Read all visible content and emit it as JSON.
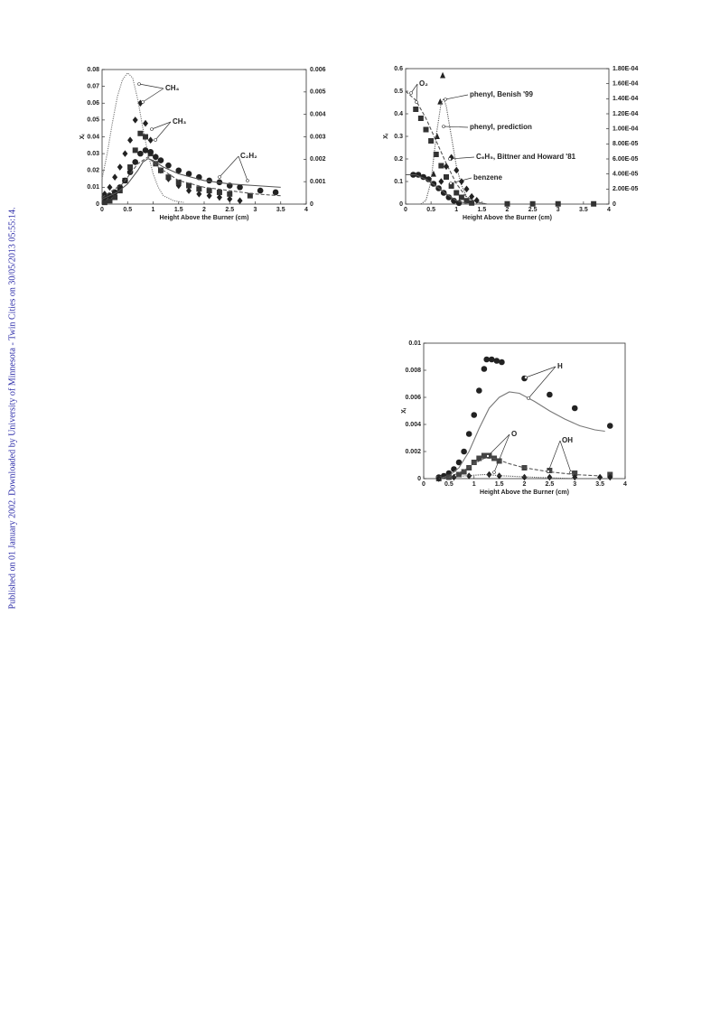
{
  "side_note": "Published on 01 January 2002. Downloaded by University of Minnesota - Twin Cities on 30/05/2013 05:55:14.",
  "chart_data": [
    {
      "type": "scatter",
      "xlabel": "Height Above the Burner (cm)",
      "ylabel": "Xᵢ",
      "xlim": [
        0,
        4
      ],
      "xticks": [
        0,
        0.5,
        1,
        1.5,
        2,
        2.5,
        3,
        3.5,
        4
      ],
      "ylim": [
        0,
        0.08
      ],
      "yticks": [
        0,
        0.01,
        0.02,
        0.03,
        0.04,
        0.05,
        0.06,
        0.07,
        0.08
      ],
      "y2lim": [
        0,
        0.006
      ],
      "y2ticks": [
        0,
        0.001,
        0.002,
        0.003,
        0.004,
        0.005,
        0.006
      ],
      "annotations": [
        "CH₄",
        "CH₃",
        "C₂H₂"
      ],
      "series": [
        {
          "marker": "diamond",
          "color": "#222",
          "x": [
            0.05,
            0.15,
            0.25,
            0.35,
            0.45,
            0.55,
            0.65,
            0.75,
            0.85,
            0.95,
            1.05,
            1.15,
            1.3,
            1.5,
            1.7,
            1.9,
            2.1,
            2.3,
            2.5,
            2.7
          ],
          "values": [
            0.006,
            0.01,
            0.016,
            0.022,
            0.03,
            0.038,
            0.05,
            0.06,
            0.048,
            0.038,
            0.028,
            0.02,
            0.015,
            0.011,
            0.008,
            0.006,
            0.005,
            0.004,
            0.003,
            0.002
          ]
        },
        {
          "line": "dotted",
          "color": "#777",
          "x": [
            0,
            0.1,
            0.2,
            0.3,
            0.4,
            0.5,
            0.6,
            0.7,
            0.8,
            0.9,
            1.0,
            1.1,
            1.2,
            1.4,
            1.6
          ],
          "values": [
            0.015,
            0.03,
            0.048,
            0.064,
            0.074,
            0.078,
            0.075,
            0.062,
            0.045,
            0.03,
            0.018,
            0.01,
            0.005,
            0.002,
            0.001
          ]
        },
        {
          "marker": "square",
          "color": "#333",
          "x": [
            0.05,
            0.15,
            0.25,
            0.35,
            0.45,
            0.55,
            0.65,
            0.75,
            0.85,
            0.95,
            1.05,
            1.15,
            1.3,
            1.5,
            1.7,
            1.9,
            2.1,
            2.3,
            2.5,
            2.9
          ],
          "values": [
            0.001,
            0.002,
            0.004,
            0.008,
            0.014,
            0.022,
            0.032,
            0.042,
            0.04,
            0.03,
            0.024,
            0.02,
            0.016,
            0.013,
            0.011,
            0.009,
            0.008,
            0.007,
            0.006,
            0.005
          ]
        },
        {
          "marker": "circle",
          "color": "#222",
          "x": [
            0.05,
            0.15,
            0.25,
            0.35,
            0.45,
            0.55,
            0.65,
            0.75,
            0.85,
            0.95,
            1.05,
            1.15,
            1.3,
            1.5,
            1.7,
            1.9,
            2.1,
            2.3,
            2.5,
            2.7,
            3.1,
            3.4
          ],
          "values": [
            0.004,
            0.005,
            0.007,
            0.01,
            0.014,
            0.019,
            0.025,
            0.03,
            0.032,
            0.031,
            0.028,
            0.026,
            0.023,
            0.02,
            0.018,
            0.016,
            0.014,
            0.013,
            0.011,
            0.01,
            0.008,
            0.007
          ]
        },
        {
          "line": "solid",
          "color": "#555",
          "x": [
            0,
            0.3,
            0.5,
            0.7,
            0.8,
            0.9,
            1.0,
            1.2,
            1.5,
            2.0,
            2.5,
            3.0,
            3.5
          ],
          "values": [
            0.003,
            0.007,
            0.012,
            0.02,
            0.025,
            0.027,
            0.026,
            0.022,
            0.018,
            0.014,
            0.012,
            0.011,
            0.01
          ]
        },
        {
          "line": "dashed",
          "color": "#555",
          "x": [
            0,
            0.4,
            0.7,
            0.9,
            1.1,
            1.5,
            2,
            2.5,
            3,
            3.5
          ],
          "values": [
            0.004,
            0.012,
            0.024,
            0.028,
            0.022,
            0.014,
            0.01,
            0.008,
            0.006,
            0.005
          ]
        }
      ]
    },
    {
      "type": "scatter",
      "xlabel": "Height Above the Burner (cm)",
      "ylabel": "Xᵢ",
      "xlim": [
        0,
        4
      ],
      "xticks": [
        0,
        0.5,
        1,
        1.5,
        2,
        2.5,
        3,
        3.5,
        4
      ],
      "ylim": [
        0,
        0.6
      ],
      "yticks": [
        0,
        0.1,
        0.2,
        0.3,
        0.4,
        0.5,
        0.6
      ],
      "y2lim": [
        0,
        0.00018
      ],
      "y2ticks": [
        0,
        {
          "value": 2e-05,
          "label": "2.00E-05"
        },
        {
          "value": 4e-05,
          "label": "4.00E-05"
        },
        {
          "value": 6e-05,
          "label": "6.00E-05"
        },
        {
          "value": 8e-05,
          "label": "8.00E-05"
        },
        {
          "value": 0.0001,
          "label": "1.00E-04"
        },
        {
          "value": 0.00012,
          "label": "1.20E-04"
        },
        {
          "value": 0.00014,
          "label": "1.40E-04"
        },
        {
          "value": 0.00016,
          "label": "1.60E-04"
        },
        {
          "value": 0.00018,
          "label": "1.80E-04"
        }
      ],
      "annotations": [
        "O₂",
        "phenyl, Benish '99",
        "phenyl, prediction",
        "C₆H₅, Bittner and Howard '81",
        "benzene"
      ],
      "series": [
        {
          "marker": "square",
          "color": "#333",
          "x": [
            0.2,
            0.3,
            0.4,
            0.5,
            0.6,
            0.7,
            0.8,
            0.9,
            1.0,
            1.1,
            1.2,
            1.3,
            2.0,
            2.5,
            3.0,
            3.7
          ],
          "values": [
            0.42,
            0.38,
            0.33,
            0.28,
            0.22,
            0.17,
            0.12,
            0.08,
            0.05,
            0.03,
            0.015,
            0.005,
            0.001,
            0.001,
            0.001,
            0.001
          ]
        },
        {
          "line": "dashed",
          "color": "#555",
          "x": [
            0,
            0.2,
            0.4,
            0.6,
            0.8,
            1.0,
            1.2,
            1.4,
            1.6
          ],
          "values": [
            0.5,
            0.46,
            0.38,
            0.28,
            0.18,
            0.09,
            0.03,
            0.01,
            0
          ]
        },
        {
          "marker": "circle",
          "color": "#222",
          "x": [
            0.15,
            0.25,
            0.35,
            0.45,
            0.55,
            0.65,
            0.75,
            0.85,
            0.95,
            1.05
          ],
          "values": [
            0.13,
            0.13,
            0.12,
            0.11,
            0.09,
            0.07,
            0.05,
            0.03,
            0.015,
            0.005
          ]
        },
        {
          "line": "solid",
          "color": "#555",
          "x": [
            0,
            0.2,
            0.4,
            0.6,
            0.8,
            1.0,
            1.2
          ],
          "values": [
            0.13,
            0.13,
            0.11,
            0.08,
            0.045,
            0.015,
            0.003
          ]
        },
        {
          "marker": "triangle",
          "color": "#222",
          "axis": "y2",
          "x": [
            0.55,
            0.62,
            0.68,
            0.73
          ],
          "values": [
            4e-05,
            9e-05,
            0.000136,
            0.000171
          ]
        },
        {
          "line": "dotted",
          "color": "#555",
          "axis": "y2",
          "x": [
            0.3,
            0.4,
            0.5,
            0.6,
            0.7,
            0.75,
            0.8,
            0.9,
            1.0,
            1.1,
            1.2,
            1.4,
            1.6
          ],
          "values": [
            0,
            5e-06,
            3e-05,
            9e-05,
            0.000135,
            0.00014,
            0.00013,
            9e-05,
            5e-05,
            2.5e-05,
            1e-05,
            2e-06,
            0
          ]
        },
        {
          "marker": "diamond",
          "color": "#222",
          "axis": "y2",
          "x": [
            0.7,
            0.8,
            0.9,
            1.0,
            1.1,
            1.2,
            1.3,
            1.4
          ],
          "values": [
            3e-05,
            5e-05,
            6.2e-05,
            4.5e-05,
            3e-05,
            2e-05,
            1e-05,
            5e-06
          ]
        }
      ]
    },
    {
      "type": "scatter",
      "xlabel": "Height Above the Burner (cm)",
      "ylabel": "Xᵢ",
      "xlim": [
        0,
        4
      ],
      "xticks": [
        0,
        0.5,
        1,
        1.5,
        2,
        2.5,
        3,
        3.5,
        4
      ],
      "ylim": [
        0,
        0.01
      ],
      "yticks": [
        0,
        0.002,
        0.004,
        0.006,
        0.008,
        0.01
      ],
      "annotations": [
        "H",
        "O",
        "OH"
      ],
      "series": [
        {
          "marker": "circle",
          "color": "#222",
          "x": [
            0.3,
            0.4,
            0.5,
            0.6,
            0.7,
            0.8,
            0.9,
            1.0,
            1.1,
            1.2,
            1.25,
            1.35,
            1.45,
            1.55,
            2.0,
            2.5,
            3.0,
            3.7
          ],
          "values": [
            0.0001,
            0.0002,
            0.0004,
            0.0007,
            0.0012,
            0.002,
            0.0033,
            0.0047,
            0.0065,
            0.0081,
            0.0088,
            0.0088,
            0.0087,
            0.0086,
            0.0074,
            0.0062,
            0.0052,
            0.0039
          ]
        },
        {
          "line": "solid",
          "color": "#777",
          "x": [
            0.3,
            0.5,
            0.7,
            0.9,
            1.1,
            1.3,
            1.5,
            1.7,
            1.9,
            2.2,
            2.5,
            2.8,
            3.1,
            3.4,
            3.6
          ],
          "values": [
            0,
            0.0002,
            0.0008,
            0.002,
            0.0037,
            0.0052,
            0.006,
            0.0064,
            0.0063,
            0.0057,
            0.005,
            0.0044,
            0.0039,
            0.0036,
            0.0035
          ]
        },
        {
          "marker": "square",
          "color": "#444",
          "x": [
            0.3,
            0.5,
            0.7,
            0.8,
            0.9,
            1.0,
            1.1,
            1.2,
            1.3,
            1.4,
            1.5,
            2.0,
            2.5,
            3.0,
            3.7
          ],
          "values": [
            0,
            0.0001,
            0.0003,
            0.0005,
            0.0008,
            0.0012,
            0.0015,
            0.0017,
            0.0017,
            0.0015,
            0.0013,
            0.0008,
            0.0006,
            0.0004,
            0.0003
          ]
        },
        {
          "line": "dashed",
          "color": "#555",
          "x": [
            0.5,
            0.8,
            1.0,
            1.2,
            1.4,
            1.7,
            2.0,
            2.5,
            3.0,
            3.5
          ],
          "values": [
            0.0001,
            0.0006,
            0.0011,
            0.0015,
            0.0015,
            0.0011,
            0.0008,
            0.0005,
            0.0003,
            0.0002
          ]
        },
        {
          "marker": "diamond",
          "color": "#222",
          "x": [
            0.3,
            0.6,
            0.9,
            1.3,
            1.5,
            2.0,
            2.5,
            3.0,
            3.5,
            3.7
          ],
          "values": [
            0,
            0.0001,
            0.0002,
            0.0003,
            0.0002,
            0.0001,
            0.0001,
            0.0001,
            0.0001,
            0.0001
          ]
        },
        {
          "line": "dotted",
          "color": "#555",
          "x": [
            0.3,
            0.8,
            1.2,
            1.6,
            2.2,
            3,
            3.6
          ],
          "values": [
            0,
            0.0002,
            0.0003,
            0.0002,
            0.0001,
            0,
            0
          ]
        }
      ]
    }
  ]
}
